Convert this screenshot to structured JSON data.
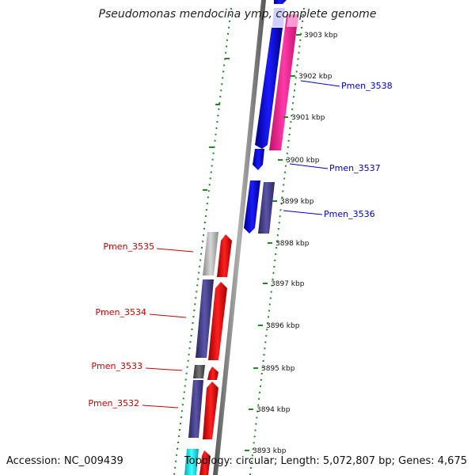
{
  "title": "Pseudomonas mendocina ymp, complete genome",
  "accession": "Accession: NC_009439",
  "summary": "Topology: circular; Length: 5,072,807 bp; Genes: 4,675",
  "colors": {
    "backbone": "#8c8c8c",
    "ticks": "#1f8a1f",
    "blue": "#0a0aee",
    "pink": "#ff2a9a",
    "slate": "#4a4490",
    "red": "#ee1111",
    "gray": "#b4b4b4",
    "darkgray": "#5a5a5a",
    "cyan": "#00e5ee",
    "label_forward": "#0000cc",
    "label_reverse": "#cc0000"
  },
  "scale": {
    "unit": "kbp",
    "labels": [
      "3903 kbp",
      "3902 kbp",
      "3901 kbp",
      "3900 kbp",
      "3899 kbp",
      "3898 kbp",
      "3897 kbp",
      "3896 kbp",
      "3895 kbp",
      "3894 kbp",
      "3893 kbp"
    ]
  },
  "gene_labels": [
    {
      "name": "Pmen_3538",
      "strand": "forward"
    },
    {
      "name": "Pmen_3537",
      "strand": "forward"
    },
    {
      "name": "Pmen_3536",
      "strand": "forward"
    },
    {
      "name": "Pmen_3535",
      "strand": "reverse"
    },
    {
      "name": "Pmen_3534",
      "strand": "reverse"
    },
    {
      "name": "Pmen_3533",
      "strand": "reverse"
    },
    {
      "name": "Pmen_3532",
      "strand": "reverse"
    }
  ]
}
